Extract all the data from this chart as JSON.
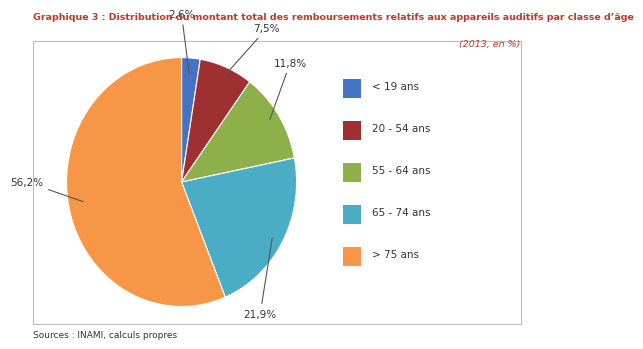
{
  "title": "Graphique 3 : Distribution du montant total des remboursements relatifs aux appareils auditifs par classe d’âge",
  "subtitle": "(2013, en %)",
  "labels": [
    "< 19 ans",
    "20 - 54 ans",
    "55 - 64 ans",
    "65 - 74 ans",
    "> 75 ans"
  ],
  "values": [
    2.6,
    7.5,
    11.8,
    21.9,
    56.2
  ],
  "colors": [
    "#4472C4",
    "#9E3032",
    "#8DB04A",
    "#4BACC6",
    "#F79646"
  ],
  "pct_labels": [
    "2,6%",
    "7,5%",
    "11,8%",
    "21,9%",
    "56,2%"
  ],
  "source": "Sources : INAMI, calculs propres",
  "title_color": "#C0392B",
  "subtitle_color": "#C0392B",
  "bg_color": "#FFFFFF",
  "border_color": "#BBBBBB",
  "label_line_color": "#555555",
  "text_color": "#333333"
}
